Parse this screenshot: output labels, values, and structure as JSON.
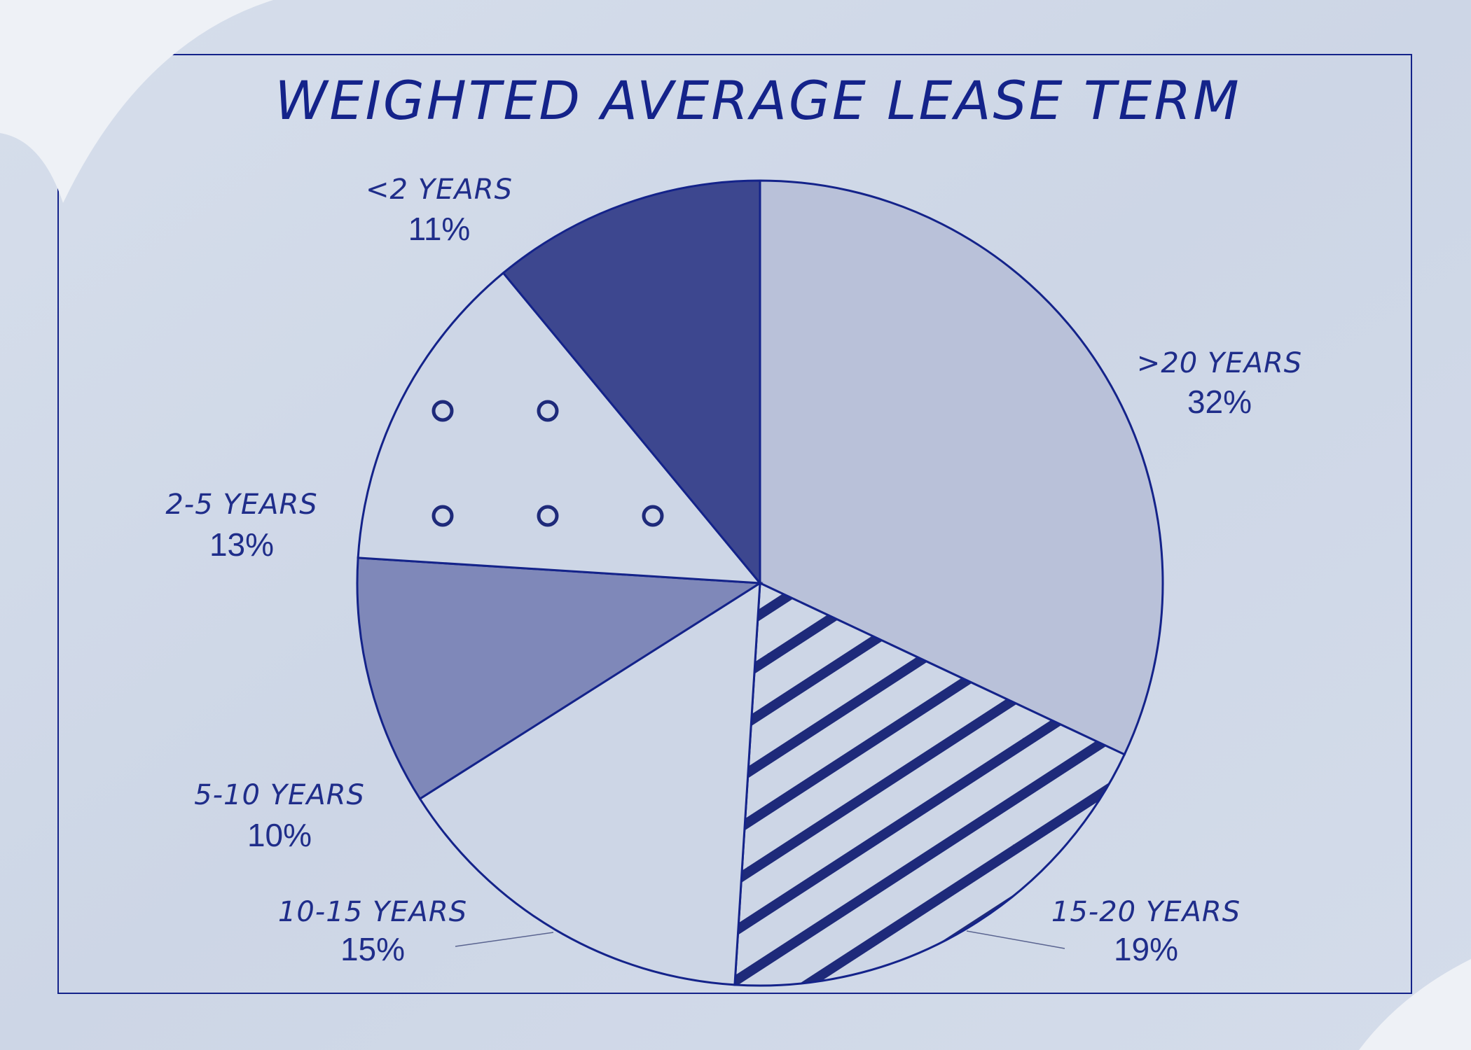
{
  "chart_data": {
    "type": "pie",
    "title": "WEIGHTED AVERAGE LEASE TERM",
    "categories": [
      ">20 YEARS",
      "15-20 YEARS",
      "10-15 YEARS",
      "5-10 YEARS",
      "2-5 YEARS",
      "<2 YEARS"
    ],
    "values": [
      32,
      19,
      15,
      10,
      13,
      11
    ],
    "value_labels": [
      "32%",
      "19%",
      "15%",
      "10%",
      "13%",
      "11%"
    ],
    "colors": [
      "#b9c1d9",
      "#cdd6e6",
      "#cdd6e6",
      "#7f88b9",
      "#cdd6e6",
      "#3d478f"
    ],
    "patterns": [
      "solid",
      "stripes",
      "solid",
      "solid",
      "circles",
      "solid"
    ],
    "stroke": "#14238a"
  }
}
